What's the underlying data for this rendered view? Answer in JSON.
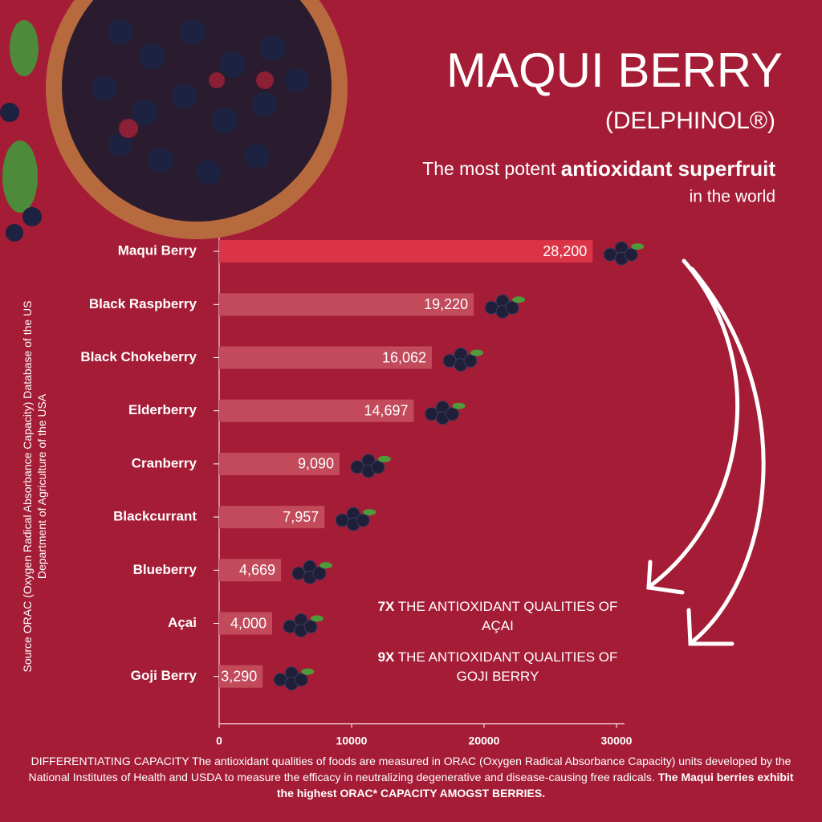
{
  "chart_data": {
    "type": "bar",
    "orientation": "horizontal",
    "title": "MAQUI BERRY",
    "subtitle": "(DELPHINOL®)",
    "tagline": [
      "The most potent",
      "antioxidant superfruit",
      "in the world"
    ],
    "ylabel": "Source ORAC (Oxygen Radical Absorbance Capacity) Database of the US Department of Agriculture of the USA",
    "categories": [
      "Maqui Berry",
      "Black Raspberry",
      "Black Chokeberry",
      "Elderberry",
      "Cranberry",
      "Blackcurrant",
      "Blueberry",
      "Açai",
      "Goji Berry"
    ],
    "values": [
      28200,
      19220,
      16062,
      14697,
      9090,
      7957,
      4669,
      4000,
      3290
    ],
    "value_labels": [
      "28,200",
      "19,220",
      "16,062",
      "14,697",
      "9,090",
      "7,957",
      "4,669",
      "4,000",
      "3,290"
    ],
    "colors": [
      "#dc3447",
      "#c24a5b",
      "#c24a5b",
      "#c24a5b",
      "#c24a5b",
      "#c24a5b",
      "#c24a5b",
      "#c24a5b",
      "#c24a5b"
    ],
    "xlim": [
      0,
      30000
    ],
    "xticks": [
      0,
      10000,
      20000,
      30000
    ],
    "annotations": [
      {
        "bold": "7X",
        "text": "THE ANTIOXIDANT QUALITIES OF AÇAI"
      },
      {
        "bold": "9X",
        "text": "THE ANTIOXIDANT QUALITIES OF GOJI BERRY"
      }
    ],
    "footer": [
      "DIFFERENTIATING CAPACITY The antioxidant qualities of foods are measured in ORAC (Oxygen Radical Absorbance Capacity) units developed by the National Institutes of Health and USDA to measure the efficacy in neutralizing degenerative and disease-causing free radicals.",
      "The Maqui berries exhibit the highest ORAC* CAPACITY AMOGST BERRIES."
    ]
  }
}
